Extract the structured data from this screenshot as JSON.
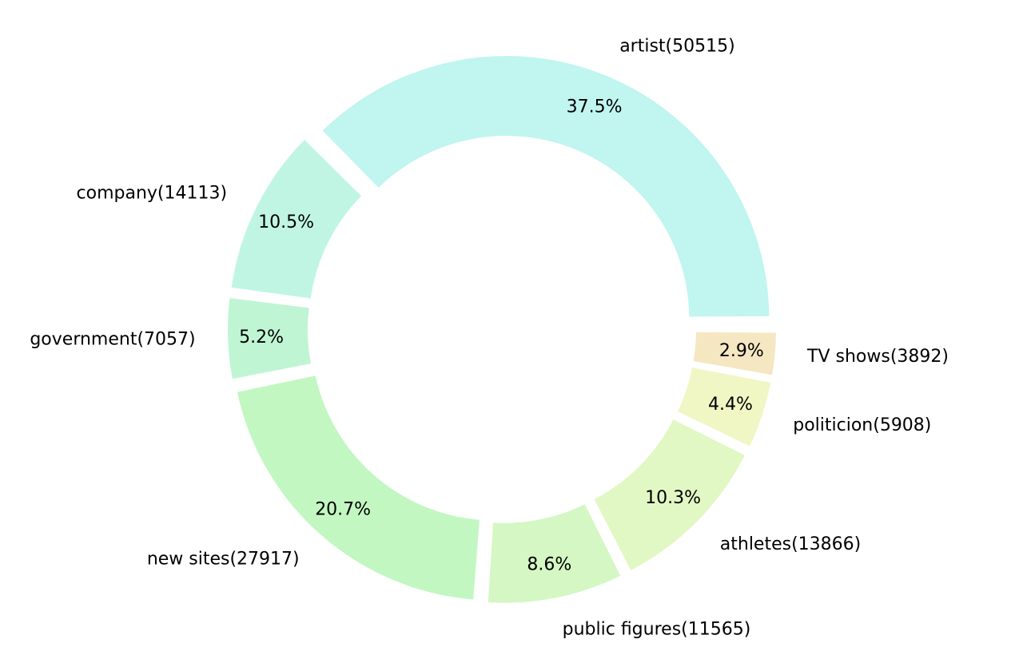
{
  "chart_data": {
    "type": "pie",
    "style": "donut",
    "categories": [
      "artist",
      "company",
      "government",
      "new sites",
      "public figures",
      "athletes",
      "politicion",
      "TV shows"
    ],
    "values": [
      50515,
      14113,
      7057,
      27917,
      11565,
      13866,
      5908,
      3892
    ],
    "labels": [
      "artist(50515)",
      "company(14113)",
      "government(7057)",
      "new sites(27917)",
      "public figures(11565)",
      "athletes(13866)",
      "politicion(5908)",
      "TV shows(3892)"
    ],
    "percent_labels": [
      "37.5%",
      "10.5%",
      "5.2%",
      "20.7%",
      "8.6%",
      "10.3%",
      "4.4%",
      "2.9%"
    ],
    "colors": [
      "#c0f5f0",
      "#c0f5e4",
      "#c0f5d4",
      "#c2f7c2",
      "#d4f7c4",
      "#e2f8c4",
      "#f1f7c4",
      "#f5e7c2"
    ],
    "start_angle_deg": 0,
    "direction": "counterclockwise",
    "legend": "none",
    "title": ""
  }
}
